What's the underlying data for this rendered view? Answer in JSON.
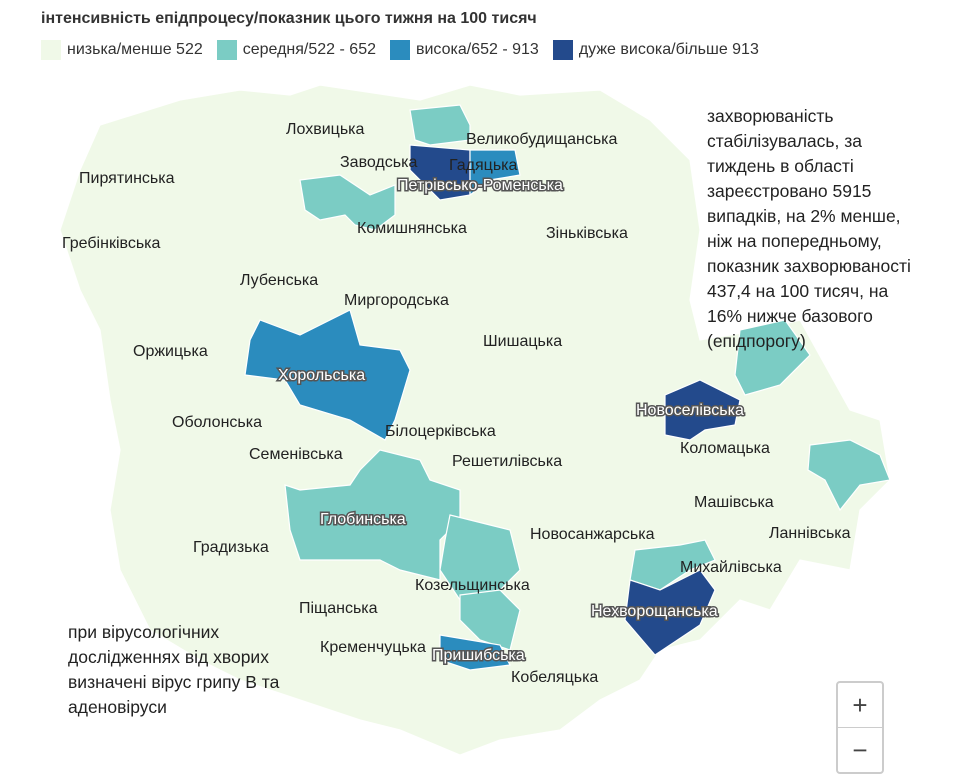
{
  "title": "інтенсивність епідпроцесу/показник цього тижня на 100 тисяч",
  "legend": [
    {
      "label": "низька/менше 522",
      "color": "#f0f9e8"
    },
    {
      "label": "середня/522 - 652",
      "color": "#7bccc4"
    },
    {
      "label": "висока/652 - 913",
      "color": "#2b8cbe"
    },
    {
      "label": "дуже висока/більше 913",
      "color": "#234a8c"
    }
  ],
  "regions": [
    {
      "name": "Лохвицька",
      "level": "низька"
    },
    {
      "name": "Великобудищанська",
      "level": "низька"
    },
    {
      "name": "Заводська",
      "level": "низька"
    },
    {
      "name": "Гадяцька",
      "level": "висока"
    },
    {
      "name": "Петрівсько-Роменська",
      "level": "дуже висока"
    },
    {
      "name": "Пирятинська",
      "level": "низька"
    },
    {
      "name": "Комишнянська",
      "level": "середня"
    },
    {
      "name": "Зіньківська",
      "level": "низька"
    },
    {
      "name": "Гребінківська",
      "level": "низька"
    },
    {
      "name": "Лубенська",
      "level": "низька"
    },
    {
      "name": "Миргородська",
      "level": "низька"
    },
    {
      "name": "Шишацька",
      "level": "низька"
    },
    {
      "name": "Оржицька",
      "level": "низька"
    },
    {
      "name": "Хорольська",
      "level": "висока"
    },
    {
      "name": "Новоселівська",
      "level": "дуже висока"
    },
    {
      "name": "Оболонська",
      "level": "низька"
    },
    {
      "name": "Білоцерківська",
      "level": "низька"
    },
    {
      "name": "Коломацька",
      "level": "низька"
    },
    {
      "name": "Семенівська",
      "level": "низька"
    },
    {
      "name": "Решетилівська",
      "level": "низька"
    },
    {
      "name": "Машівська",
      "level": "низька"
    },
    {
      "name": "Глобинська",
      "level": "середня"
    },
    {
      "name": "Ланнівська",
      "level": "середня"
    },
    {
      "name": "Новосанжарська",
      "level": "низька"
    },
    {
      "name": "Градизька",
      "level": "низька"
    },
    {
      "name": "Михайлівська",
      "level": "середня"
    },
    {
      "name": "Козельщинська",
      "level": "середня"
    },
    {
      "name": "Піщанська",
      "level": "низька"
    },
    {
      "name": "Нехворощанська",
      "level": "дуже висока"
    },
    {
      "name": "Кременчуцька",
      "level": "низька"
    },
    {
      "name": "Пришибська",
      "level": "висока"
    },
    {
      "name": "Кобеляцька",
      "level": "середня"
    }
  ],
  "note_right": "захворюваність стабілізувалась, за тиждень в області зареєстровано 5915 випадків, на 2% менше, ніж на попередньому, показник захворюваності 437,4 на 100 тисяч, на 16% нижче базового (епідпорогу)",
  "note_left": "при вірусологічних дослідженнях від хворих визначені вірус грипу В та аденовіруси",
  "zoom": {
    "in": "+",
    "out": "−"
  }
}
